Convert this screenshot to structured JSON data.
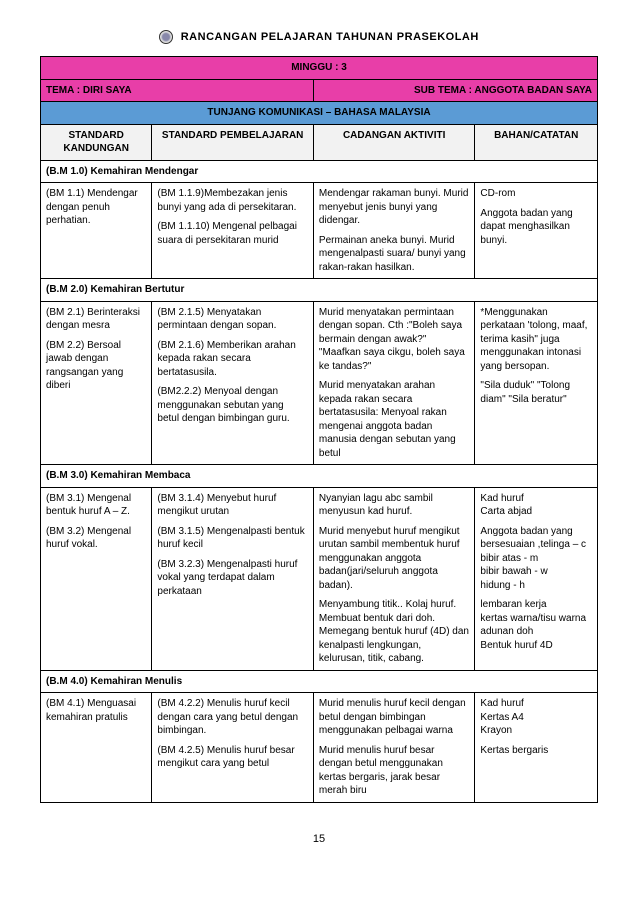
{
  "doc_title": "RANCANGAN PELAJARAN TAHUNAN PRASEKOLAH",
  "week": "MINGGU : 3",
  "tema": "TEMA : DIRI SAYA",
  "subtema": "SUB TEMA : ANGGOTA BADAN SAYA",
  "tunjang": "TUNJANG KOMUNIKASI – BAHASA MALAYSIA",
  "headers": {
    "c0": "STANDARD KANDUNGAN",
    "c1": "STANDARD PEMBELAJARAN",
    "c2": "CADANGAN AKTIVITI",
    "c3": "BAHAN/CATATAN"
  },
  "sections": [
    {
      "heading": "(B.M 1.0) Kemahiran Mendengar",
      "rows": [
        {
          "c0": "(BM 1.1) Mendengar dengan penuh perhatian.",
          "c1a": "(BM 1.1.9)Membezakan jenis bunyi yang ada di persekitaran.",
          "c1b": "(BM 1.1.10) Mengenal pelbagai suara di persekitaran murid",
          "c2a": "Mendengar rakaman bunyi. Murid menyebut jenis bunyi yang didengar.",
          "c2b": "Permainan aneka bunyi. Murid mengenalpasti suara/ bunyi yang rakan-rakan hasilkan.",
          "c3a": "CD-rom",
          "c3b": "Anggota badan yang dapat menghasilkan bunyi."
        }
      ]
    },
    {
      "heading": "(B.M 2.0) Kemahiran Bertutur",
      "rows": [
        {
          "c0a": "(BM 2.1) Berinteraksi dengan mesra",
          "c0b": "(BM 2.2) Bersoal jawab dengan rangsangan yang diberi",
          "c1a": "(BM 2.1.5) Menyatakan permintaan dengan sopan.",
          "c1b": "(BM 2.1.6) Memberikan arahan kepada rakan secara bertatasusila.",
          "c1c": "(BM2.2.2) Menyoal dengan menggunakan sebutan yang betul dengan bimbingan guru.",
          "c2a": "Murid menyatakan permintaan dengan sopan. Cth :\"Boleh saya bermain dengan awak?\" \"Maafkan saya cikgu, boleh saya ke tandas?\"",
          "c2b": "Murid menyatakan arahan kepada rakan secara bertatasusila: Menyoal rakan mengenai anggota badan manusia dengan sebutan yang betul",
          "c3a": "*Menggunakan perkataan 'tolong, maaf, terima kasih\" juga menggunakan intonasi yang bersopan.",
          "c3b": "\"Sila duduk\" \"Tolong diam\" \"Sila beratur\""
        }
      ]
    },
    {
      "heading": "(B.M 3.0) Kemahiran Membaca",
      "rows": [
        {
          "c0a": "(BM 3.1) Mengenal bentuk huruf A – Z.",
          "c0b": "(BM 3.2) Mengenal huruf vokal.",
          "c1a": "(BM 3.1.4) Menyebut huruf mengikut urutan",
          "c1b": "(BM 3.1.5) Mengenalpasti bentuk huruf kecil",
          "c1c": "(BM 3.2.3) Mengenalpasti huruf vokal yang terdapat dalam perkataan",
          "c2a": "Nyanyian lagu abc sambil menyusun kad huruf.",
          "c2b": "Murid menyebut huruf mengikut urutan sambil membentuk huruf menggunakan anggota badan(jari/seluruh anggota badan).",
          "c2c": "Menyambung titik.. Kolaj huruf. Membuat bentuk dari doh. Memegang bentuk huruf (4D) dan kenalpasti lengkungan, kelurusan, titik, cabang.",
          "c3a": "Kad huruf\nCarta abjad",
          "c3b": "Anggota badan yang bersesuaian ,telinga – c\nbibir atas - m\nbibir bawah - w\nhidung - h",
          "c3c": "lembaran kerja\nkertas warna/tisu warna\nadunan doh\nBentuk huruf 4D"
        }
      ]
    },
    {
      "heading": "(B.M 4.0) Kemahiran Menulis",
      "rows": [
        {
          "c0": "(BM 4.1) Menguasai kemahiran pratulis",
          "c1a": "(BM 4.2.2) Menulis huruf kecil dengan cara yang betul dengan bimbingan.",
          "c1b": "(BM 4.2.5) Menulis huruf besar mengikut cara yang betul",
          "c2a": "Murid menulis huruf kecil dengan betul dengan bimbingan menggunakan pelbagai warna",
          "c2b": "Murid menulis huruf besar dengan betul menggunakan kertas bergaris, jarak besar merah biru",
          "c3a": "Kad huruf\nKertas A4\nKrayon",
          "c3b": "Kertas bergaris"
        }
      ]
    }
  ],
  "page_number": "15"
}
